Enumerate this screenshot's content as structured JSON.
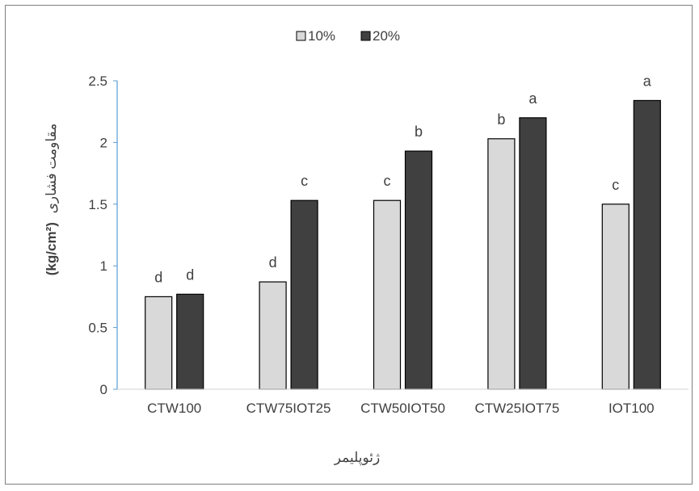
{
  "chart_data": {
    "type": "bar",
    "title": "",
    "xlabel": "ژئوپلیمر",
    "ylabel_text": "مقاومت فشاری",
    "ylabel_unit": "(kg/cm²)",
    "ylim": [
      0,
      2.5
    ],
    "yticks": [
      0,
      0.5,
      1,
      1.5,
      2,
      2.5
    ],
    "ytick_labels": [
      "0",
      "0.5",
      "1",
      "1.5",
      "2",
      "2.5"
    ],
    "grid": false,
    "legend_position": "top-center",
    "categories": [
      "CTW100",
      "CTW75IOT25",
      "CTW50IOT50",
      "CTW25IOT75",
      "IOT100"
    ],
    "series": [
      {
        "name": "10%",
        "color": "#d9d9d9",
        "values": [
          0.75,
          0.87,
          1.53,
          2.03,
          1.5
        ],
        "labels": [
          "d",
          "d",
          "c",
          "b",
          "c"
        ]
      },
      {
        "name": "20%",
        "color": "#404040",
        "values": [
          0.77,
          1.53,
          1.93,
          2.2,
          2.34
        ],
        "labels": [
          "d",
          "c",
          "b",
          "a",
          "a"
        ]
      }
    ]
  }
}
